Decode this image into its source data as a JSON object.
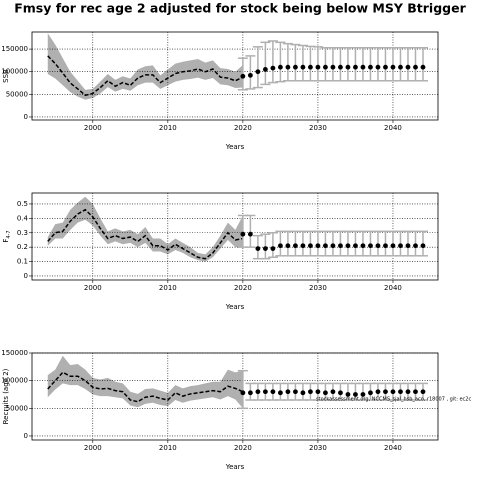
{
  "title": "Fmsy for rec age 2 adjusted for stock being below MSY Btrigger",
  "annotation": "stockassessment.org, NCCMS_sjal_hsb_aco, r18007 , git: ec2c",
  "chart_data": [
    {
      "type": "band-forecast",
      "xlabel": "Years",
      "ylabel": "SSB",
      "xlim": [
        1991.9,
        2046.0
      ],
      "xticks": [
        2000,
        2010,
        2020,
        2030,
        2040
      ],
      "ylim": [
        -6700,
        187800
      ],
      "yticks": [
        0,
        50000,
        100000,
        150000
      ],
      "grid": true,
      "x": [
        1994,
        1995,
        1996,
        1997,
        1998,
        1999,
        2000,
        2001,
        2002,
        2003,
        2004,
        2005,
        2006,
        2007,
        2008,
        2009,
        2010,
        2011,
        2012,
        2013,
        2014,
        2015,
        2016,
        2017,
        2018,
        2019,
        2020
      ],
      "values": [
        135000,
        118000,
        97000,
        75000,
        62000,
        48000,
        52000,
        65000,
        80000,
        68000,
        76000,
        70000,
        86000,
        93000,
        93000,
        76000,
        86000,
        96000,
        100000,
        102000,
        106000,
        100000,
        106000,
        88000,
        86000,
        80000,
        88000
      ],
      "upper": [
        185000,
        160000,
        130000,
        100000,
        80000,
        60000,
        62000,
        78000,
        95000,
        82000,
        90000,
        85000,
        105000,
        112000,
        114000,
        92000,
        105000,
        118000,
        122000,
        125000,
        128000,
        120000,
        125000,
        108000,
        106000,
        100000,
        115000
      ],
      "lower": [
        95000,
        85000,
        70000,
        55000,
        45000,
        38000,
        42000,
        52000,
        66000,
        56000,
        62000,
        58000,
        70000,
        76000,
        76000,
        62000,
        70000,
        78000,
        82000,
        84000,
        87000,
        82000,
        86000,
        72000,
        70000,
        64000,
        65000
      ],
      "forecast_x": [
        2020,
        2021,
        2022,
        2023,
        2024,
        2025,
        2026,
        2027,
        2028,
        2029,
        2030,
        2031,
        2032,
        2033,
        2034,
        2035,
        2036,
        2037,
        2038,
        2039,
        2040,
        2041,
        2042,
        2043,
        2044
      ],
      "forecast_values": [
        90000,
        92000,
        100000,
        105000,
        108000,
        110000,
        110000,
        110000,
        110000,
        110000,
        110000,
        110000,
        110000,
        110000,
        110000,
        110000,
        110000,
        110000,
        110000,
        110000,
        110000,
        110000,
        110000,
        110000,
        110000
      ],
      "forecast_lower": [
        60000,
        62000,
        65000,
        72000,
        76000,
        78000,
        80000,
        80000,
        80000,
        80000,
        80000,
        80000,
        80000,
        80000,
        80000,
        80000,
        80000,
        80000,
        80000,
        80000,
        80000,
        80000,
        80000,
        80000,
        80000
      ],
      "forecast_upper": [
        130000,
        135000,
        155000,
        165000,
        168000,
        165000,
        162000,
        160000,
        158000,
        156000,
        155000,
        153000,
        153000,
        153000,
        153000,
        153000,
        153000,
        153000,
        153000,
        153000,
        153000,
        153000,
        153000,
        153000,
        153000
      ]
    },
    {
      "type": "band-forecast",
      "xlabel": "Years",
      "ylabel": "F",
      "ylabel_sub": "4-7",
      "xlim": [
        1991.9,
        2046.0
      ],
      "xticks": [
        2000,
        2010,
        2020,
        2030,
        2040
      ],
      "ylim": [
        -0.028,
        0.576
      ],
      "yticks": [
        0,
        0.1,
        0.2,
        0.3,
        0.4,
        0.5
      ],
      "grid": true,
      "x": [
        1994,
        1995,
        1996,
        1997,
        1998,
        1999,
        2000,
        2001,
        2002,
        2003,
        2004,
        2005,
        2006,
        2007,
        2008,
        2009,
        2010,
        2011,
        2012,
        2013,
        2014,
        2015,
        2016,
        2017,
        2018,
        2019,
        2020
      ],
      "values": [
        0.24,
        0.3,
        0.31,
        0.38,
        0.43,
        0.46,
        0.41,
        0.33,
        0.26,
        0.28,
        0.26,
        0.27,
        0.24,
        0.28,
        0.21,
        0.21,
        0.18,
        0.22,
        0.19,
        0.16,
        0.13,
        0.12,
        0.16,
        0.23,
        0.3,
        0.25,
        0.26
      ],
      "upper": [
        0.27,
        0.36,
        0.37,
        0.46,
        0.51,
        0.55,
        0.5,
        0.4,
        0.31,
        0.33,
        0.31,
        0.32,
        0.29,
        0.34,
        0.26,
        0.26,
        0.22,
        0.26,
        0.23,
        0.2,
        0.16,
        0.15,
        0.2,
        0.28,
        0.37,
        0.32,
        0.42
      ],
      "lower": [
        0.21,
        0.26,
        0.26,
        0.32,
        0.37,
        0.39,
        0.35,
        0.28,
        0.22,
        0.24,
        0.22,
        0.23,
        0.2,
        0.23,
        0.17,
        0.17,
        0.15,
        0.18,
        0.16,
        0.13,
        0.11,
        0.1,
        0.13,
        0.19,
        0.25,
        0.2,
        0.2
      ],
      "forecast_x": [
        2020,
        2021,
        2022,
        2023,
        2024,
        2025,
        2026,
        2027,
        2028,
        2029,
        2030,
        2031,
        2032,
        2033,
        2034,
        2035,
        2036,
        2037,
        2038,
        2039,
        2040,
        2041,
        2042,
        2043,
        2044
      ],
      "forecast_values": [
        0.29,
        0.29,
        0.19,
        0.19,
        0.19,
        0.21,
        0.21,
        0.21,
        0.21,
        0.21,
        0.21,
        0.21,
        0.21,
        0.21,
        0.21,
        0.21,
        0.21,
        0.21,
        0.21,
        0.21,
        0.21,
        0.21,
        0.21,
        0.21,
        0.21
      ],
      "forecast_lower": [
        0.2,
        0.2,
        0.12,
        0.12,
        0.13,
        0.14,
        0.14,
        0.14,
        0.14,
        0.14,
        0.14,
        0.14,
        0.14,
        0.14,
        0.14,
        0.14,
        0.14,
        0.14,
        0.14,
        0.14,
        0.14,
        0.14,
        0.14,
        0.14,
        0.14
      ],
      "forecast_upper": [
        0.42,
        0.42,
        0.28,
        0.29,
        0.3,
        0.31,
        0.31,
        0.31,
        0.31,
        0.31,
        0.31,
        0.31,
        0.31,
        0.31,
        0.31,
        0.31,
        0.31,
        0.31,
        0.31,
        0.31,
        0.31,
        0.31,
        0.31,
        0.31,
        0.31
      ]
    },
    {
      "type": "band-forecast",
      "xlabel": "Years",
      "ylabel": "Recruits (age 2)",
      "xlim": [
        1991.9,
        2046.0
      ],
      "xticks": [
        2000,
        2010,
        2020,
        2030,
        2040
      ],
      "ylim": [
        -7300,
        150000
      ],
      "yticks": [
        0,
        50000,
        100000,
        150000
      ],
      "grid": true,
      "x": [
        1994,
        1995,
        1996,
        1997,
        1998,
        1999,
        2000,
        2001,
        2002,
        2003,
        2004,
        2005,
        2006,
        2007,
        2008,
        2009,
        2010,
        2011,
        2012,
        2013,
        2014,
        2015,
        2016,
        2017,
        2018,
        2019,
        2020
      ],
      "values": [
        85000,
        100000,
        115000,
        108000,
        108000,
        100000,
        88000,
        85000,
        86000,
        82000,
        80000,
        65000,
        62000,
        70000,
        72000,
        68000,
        65000,
        78000,
        72000,
        76000,
        78000,
        80000,
        82000,
        80000,
        90000,
        86000,
        80000
      ],
      "upper": [
        110000,
        120000,
        145000,
        128000,
        130000,
        120000,
        105000,
        102000,
        105000,
        98000,
        95000,
        80000,
        76000,
        85000,
        86000,
        82000,
        78000,
        92000,
        86000,
        90000,
        92000,
        95000,
        98000,
        98000,
        120000,
        115000,
        118000
      ],
      "lower": [
        70000,
        84000,
        95000,
        92000,
        92000,
        85000,
        75000,
        72000,
        72000,
        70000,
        68000,
        55000,
        52000,
        58000,
        60000,
        56000,
        54000,
        65000,
        60000,
        64000,
        66000,
        68000,
        70000,
        66000,
        72000,
        66000,
        50000
      ],
      "forecast_x": [
        2020,
        2021,
        2022,
        2023,
        2024,
        2025,
        2026,
        2027,
        2028,
        2029,
        2030,
        2031,
        2032,
        2033,
        2034,
        2035,
        2036,
        2037,
        2038,
        2039,
        2040,
        2041,
        2042,
        2043,
        2044
      ],
      "forecast_values": [
        78000,
        78000,
        80000,
        80000,
        80000,
        78000,
        80000,
        80000,
        78000,
        80000,
        80000,
        78000,
        80000,
        78000,
        75000,
        75000,
        75000,
        78000,
        80000,
        80000,
        80000,
        80000,
        80000,
        80000,
        80000
      ],
      "forecast_lower": [
        50000,
        65000,
        65000,
        65000,
        65000,
        65000,
        65000,
        65000,
        65000,
        65000,
        65000,
        65000,
        65000,
        65000,
        65000,
        65000,
        65000,
        65000,
        65000,
        65000,
        65000,
        65000,
        65000,
        65000,
        65000
      ],
      "forecast_upper": [
        118000,
        95000,
        95000,
        95000,
        95000,
        95000,
        95000,
        95000,
        95000,
        95000,
        95000,
        95000,
        95000,
        95000,
        95000,
        95000,
        95000,
        95000,
        95000,
        95000,
        95000,
        95000,
        95000,
        95000,
        95000
      ]
    }
  ]
}
